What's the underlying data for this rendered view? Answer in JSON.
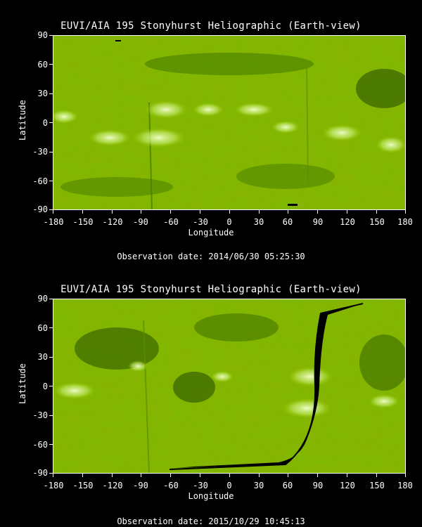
{
  "panels": [
    {
      "title": "EUVI/AIA 195 Stonyhurst Heliographic (Earth-view)",
      "ylabel": "Latitude",
      "xlabel": "Longitude",
      "observation": "Observation date: 2014/06/30 05:25:30",
      "yticks": [
        "90",
        "60",
        "30",
        "0",
        "-30",
        "-60",
        "-90"
      ],
      "xticks": [
        "-180",
        "-150",
        "-120",
        "-90",
        "-60",
        "-30",
        "0",
        "30",
        "60",
        "90",
        "120",
        "150",
        "180"
      ]
    },
    {
      "title": "EUVI/AIA 195 Stonyhurst Heliographic (Earth-view)",
      "ylabel": "Latitude",
      "xlabel": "Longitude",
      "observation": "Observation date: 2015/10/29 10:45:13",
      "yticks": [
        "90",
        "60",
        "30",
        "0",
        "-30",
        "-60",
        "-90"
      ],
      "xticks": [
        "-180",
        "-150",
        "-120",
        "-90",
        "-60",
        "-30",
        "0",
        "30",
        "60",
        "90",
        "120",
        "150",
        "180"
      ]
    }
  ],
  "colors": {
    "base": "#7fb800",
    "dark": "#2f5a00",
    "bright": "#eaffb0",
    "gap": "#000000"
  }
}
